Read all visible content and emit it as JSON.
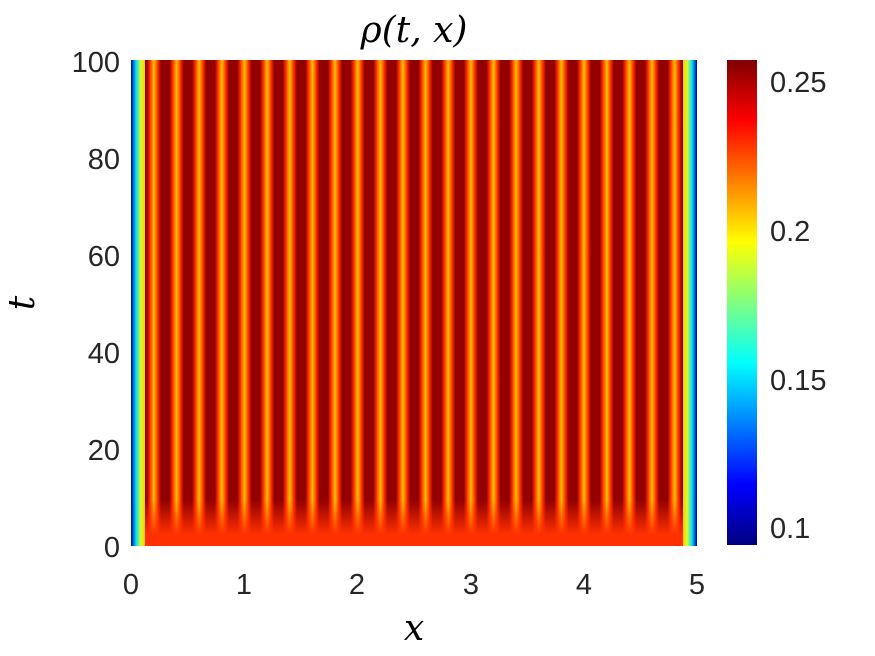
{
  "chart_data": {
    "type": "heatmap",
    "title": "ρ(t, x)",
    "xlabel": "x",
    "ylabel": "t",
    "x_range": [
      0,
      5
    ],
    "y_range": [
      0,
      100
    ],
    "x_ticks": [
      "0",
      "1",
      "2",
      "3",
      "4",
      "5"
    ],
    "y_ticks": [
      "0",
      "20",
      "40",
      "60",
      "80",
      "100"
    ],
    "colorbar": {
      "colormap": "jet",
      "range": [
        0.095,
        0.258
      ],
      "ticks": [
        "0.1",
        "0.15",
        "0.2",
        "0.25"
      ],
      "tick_values": [
        0.1,
        0.15,
        0.2,
        0.25
      ]
    },
    "stripes": {
      "count": 25,
      "orientation": "vertical (constant in t)",
      "peak_value": 0.255,
      "trough_value": 0.205,
      "boundary_value": 0.1
    },
    "initial_value_at_t0": 0.23
  }
}
